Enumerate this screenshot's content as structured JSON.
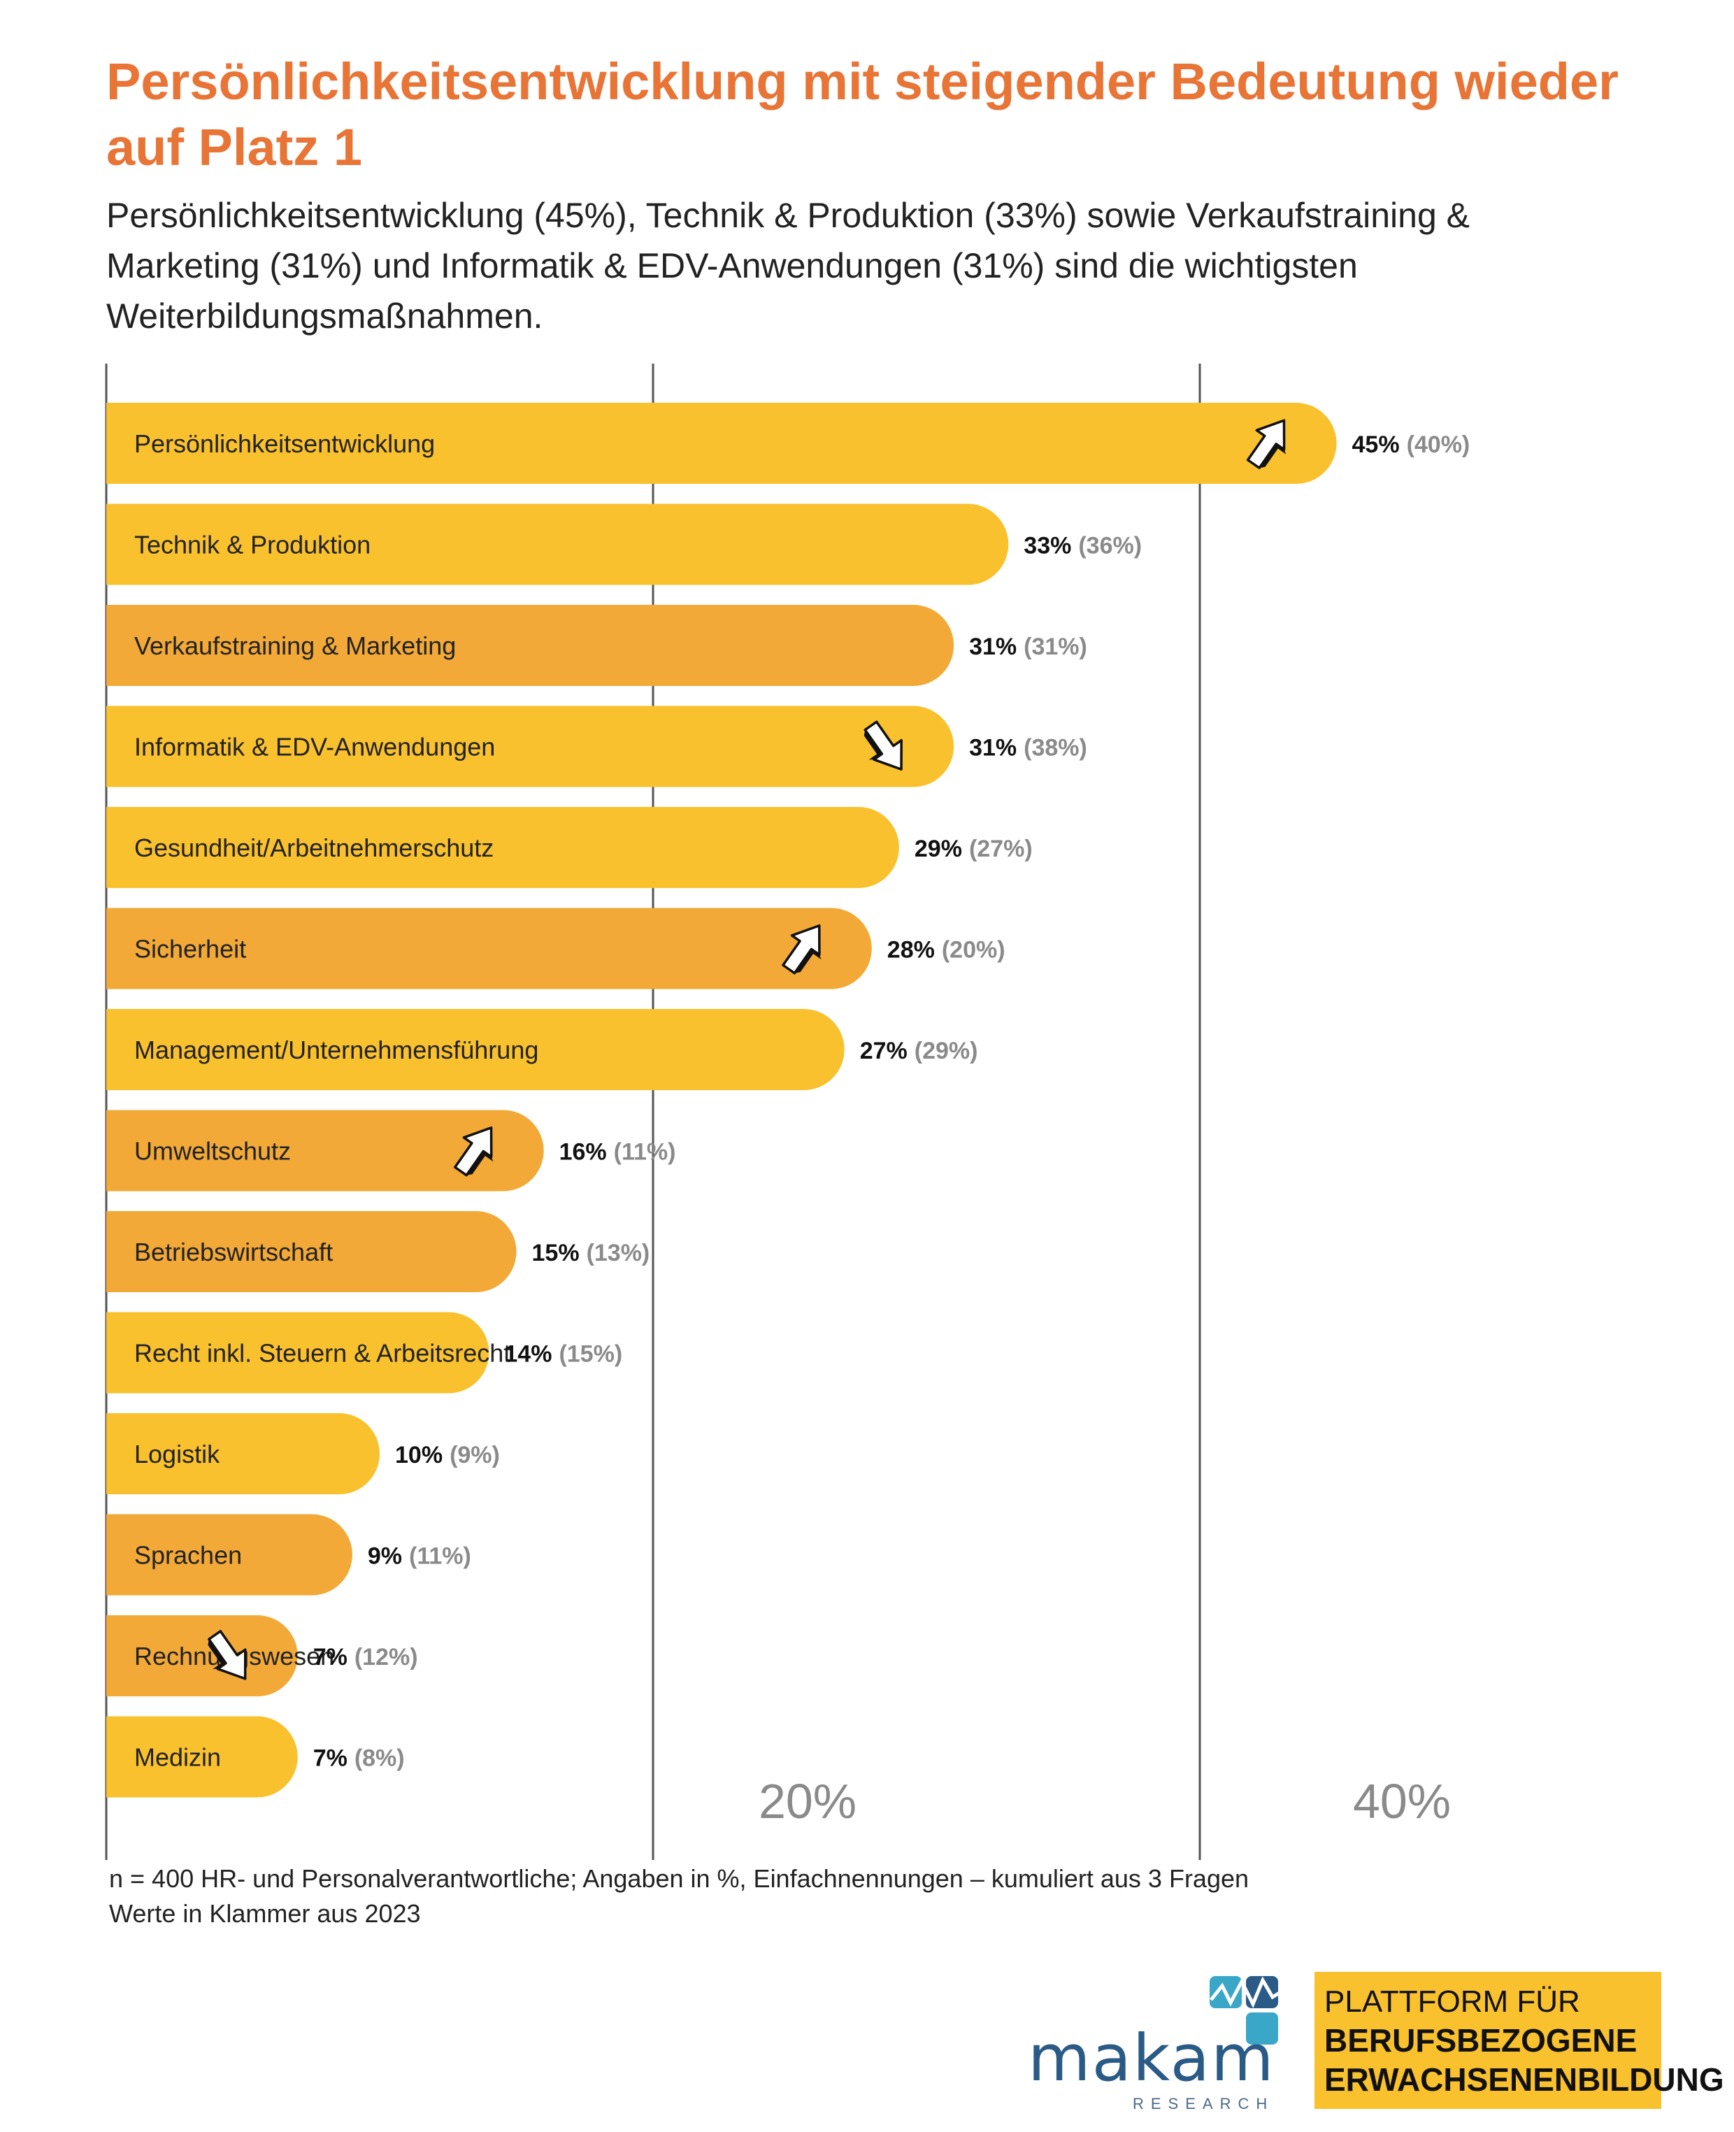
{
  "header": {
    "title": "Persönlichkeitsentwicklung mit steigender Bedeutung wieder auf Platz 1",
    "subtitle": "Persönlichkeitsentwicklung (45%), Technik & Produktion (33%) sowie Verkaufstraining & Marketing (31%) und Informatik & EDV-Anwendungen (31%) sind die wichtigsten Weiterbildungsmaßnahmen."
  },
  "chart_data": {
    "type": "bar",
    "orientation": "horizontal",
    "xlim": [
      0,
      45
    ],
    "ticks": [
      {
        "value": 20,
        "label": "20%"
      },
      {
        "value": 40,
        "label": "40%"
      }
    ],
    "series": [
      {
        "values": [
          45,
          33,
          31,
          31,
          29,
          28,
          27,
          16,
          15,
          14,
          10,
          9,
          7,
          7
        ]
      },
      {
        "values": [
          40,
          36,
          31,
          38,
          27,
          20,
          29,
          11,
          13,
          15,
          9,
          11,
          12,
          8
        ]
      }
    ],
    "categories": [
      "Persönlichkeitsentwicklung",
      "Technik & Produktion",
      "Verkaufstraining & Marketing",
      "Informatik & EDV-Anwendungen",
      "Gesundheit/Arbeitnehmerschutz",
      "Sicherheit",
      "Management/Unternehmensführung",
      "Umweltschutz",
      "Betriebswirtschaft",
      "Recht inkl. Steuern & Arbeitsrecht",
      "Logistik",
      "Sprachen",
      "Rechnungswesen",
      "Medizin"
    ],
    "value_labels": [
      "45%",
      "33%",
      "31%",
      "31%",
      "29%",
      "28%",
      "27%",
      "16%",
      "15%",
      "14%",
      "10%",
      "9%",
      "7%",
      "7%"
    ],
    "previous_labels": [
      "(40%)",
      "(36%)",
      "(31%)",
      "(38%)",
      "(27%)",
      "(20%)",
      "(29%)",
      "(11%)",
      "(13%)",
      "(15%)",
      "(9%)",
      "(11%)",
      "(12%)",
      "(8%)"
    ],
    "trend_arrows": [
      "up",
      "none",
      "none",
      "down",
      "none",
      "up",
      "none",
      "up",
      "none",
      "none",
      "none",
      "none",
      "down",
      "none"
    ],
    "bar_colors": [
      "#f9c12d",
      "#f9c12d",
      "#f2a937",
      "#f9c12d",
      "#f9c12d",
      "#f2a937",
      "#f9c12d",
      "#f2a937",
      "#f2a937",
      "#f9c12d",
      "#f9c12d",
      "#f2a937",
      "#f2a937",
      "#f9c12d"
    ]
  },
  "footnote": {
    "line1": "n = 400 HR- und Personalverantwortliche; Angaben in %, Einfachnennungen – kumuliert aus 3 Fragen",
    "line2": "Werte in Klammer aus 2023"
  },
  "logos": {
    "makam_word": "makam",
    "makam_sub": "RESEARCH",
    "platform_line1": "PLATTFORM FÜR",
    "platform_line2": "BERUFSBEZOGENE",
    "platform_line3": "ERWACHSENENBILDUNG"
  },
  "colors": {
    "title": "#e87436",
    "bar_yellow": "#f9c12d",
    "bar_orange": "#f2a937",
    "grid": "#555555",
    "muted": "#8a8a8a"
  }
}
